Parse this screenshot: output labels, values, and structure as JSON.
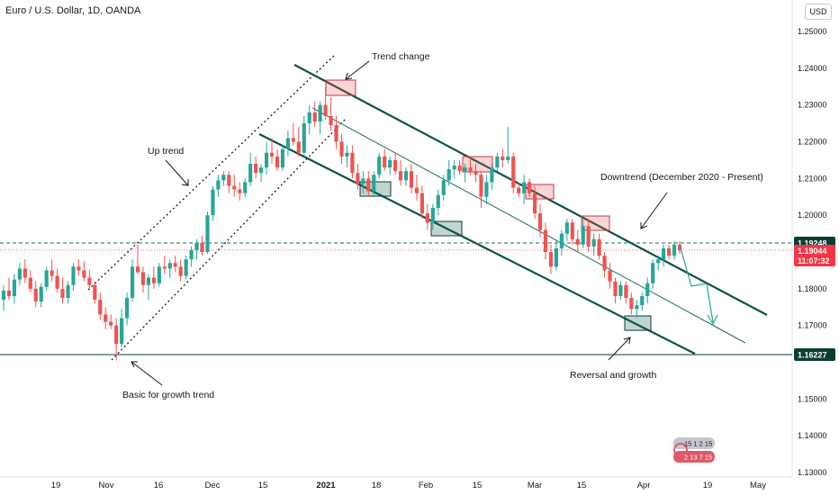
{
  "header": {
    "title": "Euro / U.S. Dollar, 1D, OANDA",
    "currency": "USD"
  },
  "price_tags": {
    "resistance": "1.19248",
    "current_price": "1.19044",
    "countdown": "11:07:32",
    "support": "1.16227"
  },
  "annotations": {
    "trend_change": "Trend change",
    "up_trend": "Up trend",
    "downtrend": "Downtrend (December 2020 - Present)",
    "basic_growth": "Basic for growth trend",
    "reversal": "Reversal and growth"
  },
  "colors": {
    "bullish": "#26a69a",
    "bearish": "#ef5350",
    "channel": "#0b5347",
    "resistance_line": "#1e6b5c",
    "current_price_tag": "#f23645",
    "support_tag": "#0b3d34"
  },
  "logo_text": {
    "line1": "15 1 2 15",
    "line2": "2 13 7 15"
  },
  "chart_data": {
    "type": "candlestick",
    "title": "Euro / U.S. Dollar, 1D, OANDA",
    "ylim": [
      1.1195,
      1.2618
    ],
    "y_ticks": [
      "1.25000",
      "1.24000",
      "1.23000",
      "1.22000",
      "1.21000",
      "1.20000",
      "1.18000",
      "1.17000",
      "1.15000",
      "1.14000",
      "1.13000"
    ],
    "x_ticks": [
      "19",
      "Nov",
      "16",
      "Dec",
      "15",
      "2021",
      "18",
      "Feb",
      "15",
      "Mar",
      "15",
      "Apr",
      "19",
      "May"
    ],
    "candles": [
      {
        "o": 1.177,
        "h": 1.181,
        "l": 1.174,
        "c": 1.1795
      },
      {
        "o": 1.1795,
        "h": 1.183,
        "l": 1.177,
        "c": 1.178
      },
      {
        "o": 1.178,
        "h": 1.184,
        "l": 1.176,
        "c": 1.1825
      },
      {
        "o": 1.1825,
        "h": 1.187,
        "l": 1.181,
        "c": 1.1855
      },
      {
        "o": 1.1855,
        "h": 1.188,
        "l": 1.1815,
        "c": 1.183
      },
      {
        "o": 1.183,
        "h": 1.185,
        "l": 1.179,
        "c": 1.18
      },
      {
        "o": 1.18,
        "h": 1.182,
        "l": 1.175,
        "c": 1.1765
      },
      {
        "o": 1.1765,
        "h": 1.1815,
        "l": 1.175,
        "c": 1.1805
      },
      {
        "o": 1.1805,
        "h": 1.186,
        "l": 1.1795,
        "c": 1.185
      },
      {
        "o": 1.185,
        "h": 1.188,
        "l": 1.182,
        "c": 1.1835
      },
      {
        "o": 1.1835,
        "h": 1.1855,
        "l": 1.179,
        "c": 1.18
      },
      {
        "o": 1.18,
        "h": 1.183,
        "l": 1.176,
        "c": 1.1775
      },
      {
        "o": 1.1775,
        "h": 1.182,
        "l": 1.176,
        "c": 1.181
      },
      {
        "o": 1.181,
        "h": 1.187,
        "l": 1.1795,
        "c": 1.186
      },
      {
        "o": 1.186,
        "h": 1.188,
        "l": 1.1835,
        "c": 1.185
      },
      {
        "o": 1.185,
        "h": 1.1875,
        "l": 1.182,
        "c": 1.183
      },
      {
        "o": 1.183,
        "h": 1.185,
        "l": 1.18,
        "c": 1.181
      },
      {
        "o": 1.181,
        "h": 1.182,
        "l": 1.176,
        "c": 1.177
      },
      {
        "o": 1.177,
        "h": 1.179,
        "l": 1.1715,
        "c": 1.173
      },
      {
        "o": 1.173,
        "h": 1.175,
        "l": 1.169,
        "c": 1.171
      },
      {
        "o": 1.171,
        "h": 1.173,
        "l": 1.169,
        "c": 1.17
      },
      {
        "o": 1.17,
        "h": 1.172,
        "l": 1.1605,
        "c": 1.165
      },
      {
        "o": 1.165,
        "h": 1.1745,
        "l": 1.164,
        "c": 1.172
      },
      {
        "o": 1.172,
        "h": 1.179,
        "l": 1.17,
        "c": 1.1775
      },
      {
        "o": 1.1775,
        "h": 1.188,
        "l": 1.1765,
        "c": 1.186
      },
      {
        "o": 1.186,
        "h": 1.192,
        "l": 1.184,
        "c": 1.1845
      },
      {
        "o": 1.1845,
        "h": 1.186,
        "l": 1.179,
        "c": 1.181
      },
      {
        "o": 1.181,
        "h": 1.184,
        "l": 1.177,
        "c": 1.183
      },
      {
        "o": 1.183,
        "h": 1.186,
        "l": 1.18,
        "c": 1.1815
      },
      {
        "o": 1.1815,
        "h": 1.187,
        "l": 1.1805,
        "c": 1.186
      },
      {
        "o": 1.186,
        "h": 1.189,
        "l": 1.184,
        "c": 1.1855
      },
      {
        "o": 1.1855,
        "h": 1.188,
        "l": 1.183,
        "c": 1.187
      },
      {
        "o": 1.187,
        "h": 1.189,
        "l": 1.1845,
        "c": 1.186
      },
      {
        "o": 1.186,
        "h": 1.188,
        "l": 1.182,
        "c": 1.1835
      },
      {
        "o": 1.1835,
        "h": 1.189,
        "l": 1.1825,
        "c": 1.188
      },
      {
        "o": 1.188,
        "h": 1.1915,
        "l": 1.186,
        "c": 1.1905
      },
      {
        "o": 1.1905,
        "h": 1.1935,
        "l": 1.188,
        "c": 1.1925
      },
      {
        "o": 1.1925,
        "h": 1.1945,
        "l": 1.189,
        "c": 1.19
      },
      {
        "o": 1.19,
        "h": 1.201,
        "l": 1.1895,
        "c": 1.2
      },
      {
        "o": 1.2,
        "h": 1.208,
        "l": 1.1985,
        "c": 1.207
      },
      {
        "o": 1.207,
        "h": 1.211,
        "l": 1.205,
        "c": 1.2095
      },
      {
        "o": 1.2095,
        "h": 1.212,
        "l": 1.208,
        "c": 1.211
      },
      {
        "o": 1.211,
        "h": 1.212,
        "l": 1.206,
        "c": 1.208
      },
      {
        "o": 1.208,
        "h": 1.211,
        "l": 1.205,
        "c": 1.207
      },
      {
        "o": 1.207,
        "h": 1.209,
        "l": 1.204,
        "c": 1.206
      },
      {
        "o": 1.206,
        "h": 1.21,
        "l": 1.205,
        "c": 1.209
      },
      {
        "o": 1.209,
        "h": 1.217,
        "l": 1.208,
        "c": 1.214
      },
      {
        "o": 1.214,
        "h": 1.216,
        "l": 1.21,
        "c": 1.2115
      },
      {
        "o": 1.2115,
        "h": 1.214,
        "l": 1.209,
        "c": 1.213
      },
      {
        "o": 1.213,
        "h": 1.22,
        "l": 1.211,
        "c": 1.217
      },
      {
        "o": 1.217,
        "h": 1.221,
        "l": 1.214,
        "c": 1.216
      },
      {
        "o": 1.216,
        "h": 1.218,
        "l": 1.212,
        "c": 1.213
      },
      {
        "o": 1.213,
        "h": 1.219,
        "l": 1.212,
        "c": 1.218
      },
      {
        "o": 1.218,
        "h": 1.223,
        "l": 1.216,
        "c": 1.221
      },
      {
        "o": 1.221,
        "h": 1.225,
        "l": 1.219,
        "c": 1.22
      },
      {
        "o": 1.22,
        "h": 1.224,
        "l": 1.216,
        "c": 1.217
      },
      {
        "o": 1.217,
        "h": 1.227,
        "l": 1.216,
        "c": 1.225
      },
      {
        "o": 1.225,
        "h": 1.23,
        "l": 1.222,
        "c": 1.228
      },
      {
        "o": 1.228,
        "h": 1.231,
        "l": 1.224,
        "c": 1.2255
      },
      {
        "o": 1.2255,
        "h": 1.231,
        "l": 1.222,
        "c": 1.23
      },
      {
        "o": 1.23,
        "h": 1.235,
        "l": 1.226,
        "c": 1.227
      },
      {
        "o": 1.227,
        "h": 1.232,
        "l": 1.223,
        "c": 1.2245
      },
      {
        "o": 1.2245,
        "h": 1.227,
        "l": 1.218,
        "c": 1.22
      },
      {
        "o": 1.22,
        "h": 1.222,
        "l": 1.214,
        "c": 1.216
      },
      {
        "o": 1.216,
        "h": 1.219,
        "l": 1.213,
        "c": 1.217
      },
      {
        "o": 1.217,
        "h": 1.219,
        "l": 1.21,
        "c": 1.2115
      },
      {
        "o": 1.2115,
        "h": 1.214,
        "l": 1.207,
        "c": 1.2085
      },
      {
        "o": 1.2085,
        "h": 1.212,
        "l": 1.206,
        "c": 1.21
      },
      {
        "o": 1.21,
        "h": 1.212,
        "l": 1.205,
        "c": 1.2065
      },
      {
        "o": 1.2065,
        "h": 1.212,
        "l": 1.2055,
        "c": 1.211
      },
      {
        "o": 1.211,
        "h": 1.217,
        "l": 1.21,
        "c": 1.216
      },
      {
        "o": 1.216,
        "h": 1.218,
        "l": 1.212,
        "c": 1.213
      },
      {
        "o": 1.213,
        "h": 1.216,
        "l": 1.211,
        "c": 1.215
      },
      {
        "o": 1.215,
        "h": 1.217,
        "l": 1.211,
        "c": 1.212
      },
      {
        "o": 1.212,
        "h": 1.215,
        "l": 1.208,
        "c": 1.2095
      },
      {
        "o": 1.2095,
        "h": 1.213,
        "l": 1.208,
        "c": 1.212
      },
      {
        "o": 1.212,
        "h": 1.214,
        "l": 1.206,
        "c": 1.2075
      },
      {
        "o": 1.2075,
        "h": 1.211,
        "l": 1.204,
        "c": 1.206
      },
      {
        "o": 1.206,
        "h": 1.208,
        "l": 1.199,
        "c": 1.2005
      },
      {
        "o": 1.2005,
        "h": 1.203,
        "l": 1.196,
        "c": 1.198
      },
      {
        "o": 1.198,
        "h": 1.203,
        "l": 1.196,
        "c": 1.202
      },
      {
        "o": 1.202,
        "h": 1.207,
        "l": 1.2,
        "c": 1.2055
      },
      {
        "o": 1.2055,
        "h": 1.211,
        "l": 1.204,
        "c": 1.2095
      },
      {
        "o": 1.2095,
        "h": 1.215,
        "l": 1.208,
        "c": 1.2125
      },
      {
        "o": 1.2125,
        "h": 1.215,
        "l": 1.21,
        "c": 1.2135
      },
      {
        "o": 1.2135,
        "h": 1.215,
        "l": 1.211,
        "c": 1.212
      },
      {
        "o": 1.212,
        "h": 1.214,
        "l": 1.209,
        "c": 1.213
      },
      {
        "o": 1.213,
        "h": 1.216,
        "l": 1.211,
        "c": 1.212
      },
      {
        "o": 1.212,
        "h": 1.214,
        "l": 1.209,
        "c": 1.211
      },
      {
        "o": 1.211,
        "h": 1.212,
        "l": 1.202,
        "c": 1.205
      },
      {
        "o": 1.205,
        "h": 1.211,
        "l": 1.203,
        "c": 1.209
      },
      {
        "o": 1.209,
        "h": 1.214,
        "l": 1.207,
        "c": 1.213
      },
      {
        "o": 1.213,
        "h": 1.217,
        "l": 1.212,
        "c": 1.216
      },
      {
        "o": 1.216,
        "h": 1.218,
        "l": 1.213,
        "c": 1.215
      },
      {
        "o": 1.215,
        "h": 1.224,
        "l": 1.214,
        "c": 1.216
      },
      {
        "o": 1.216,
        "h": 1.217,
        "l": 1.206,
        "c": 1.2075
      },
      {
        "o": 1.2075,
        "h": 1.209,
        "l": 1.205,
        "c": 1.206
      },
      {
        "o": 1.206,
        "h": 1.211,
        "l": 1.203,
        "c": 1.209
      },
      {
        "o": 1.209,
        "h": 1.21,
        "l": 1.205,
        "c": 1.206
      },
      {
        "o": 1.206,
        "h": 1.208,
        "l": 1.199,
        "c": 1.2005
      },
      {
        "o": 1.2005,
        "h": 1.203,
        "l": 1.194,
        "c": 1.196
      },
      {
        "o": 1.196,
        "h": 1.198,
        "l": 1.188,
        "c": 1.19
      },
      {
        "o": 1.19,
        "h": 1.192,
        "l": 1.184,
        "c": 1.186
      },
      {
        "o": 1.186,
        "h": 1.193,
        "l": 1.185,
        "c": 1.191
      },
      {
        "o": 1.191,
        "h": 1.196,
        "l": 1.189,
        "c": 1.195
      },
      {
        "o": 1.195,
        "h": 1.199,
        "l": 1.193,
        "c": 1.198
      },
      {
        "o": 1.198,
        "h": 1.199,
        "l": 1.192,
        "c": 1.1935
      },
      {
        "o": 1.1935,
        "h": 1.196,
        "l": 1.19,
        "c": 1.192
      },
      {
        "o": 1.192,
        "h": 1.199,
        "l": 1.191,
        "c": 1.197
      },
      {
        "o": 1.197,
        "h": 1.199,
        "l": 1.19,
        "c": 1.1915
      },
      {
        "o": 1.1915,
        "h": 1.195,
        "l": 1.189,
        "c": 1.1935
      },
      {
        "o": 1.1935,
        "h": 1.195,
        "l": 1.188,
        "c": 1.189
      },
      {
        "o": 1.189,
        "h": 1.19,
        "l": 1.183,
        "c": 1.185
      },
      {
        "o": 1.185,
        "h": 1.187,
        "l": 1.18,
        "c": 1.182
      },
      {
        "o": 1.182,
        "h": 1.183,
        "l": 1.176,
        "c": 1.178
      },
      {
        "o": 1.178,
        "h": 1.182,
        "l": 1.177,
        "c": 1.181
      },
      {
        "o": 1.181,
        "h": 1.182,
        "l": 1.176,
        "c": 1.1775
      },
      {
        "o": 1.1775,
        "h": 1.179,
        "l": 1.173,
        "c": 1.1745
      },
      {
        "o": 1.1745,
        "h": 1.177,
        "l": 1.172,
        "c": 1.1755
      },
      {
        "o": 1.1755,
        "h": 1.179,
        "l": 1.174,
        "c": 1.178
      },
      {
        "o": 1.178,
        "h": 1.183,
        "l": 1.176,
        "c": 1.1815
      },
      {
        "o": 1.1815,
        "h": 1.188,
        "l": 1.18,
        "c": 1.187
      },
      {
        "o": 1.187,
        "h": 1.189,
        "l": 1.185,
        "c": 1.188
      },
      {
        "o": 1.188,
        "h": 1.192,
        "l": 1.186,
        "c": 1.191
      },
      {
        "o": 1.191,
        "h": 1.192,
        "l": 1.188,
        "c": 1.189
      },
      {
        "o": 1.189,
        "h": 1.193,
        "l": 1.188,
        "c": 1.192
      },
      {
        "o": 1.192,
        "h": 1.193,
        "l": 1.1895,
        "c": 1.1904
      }
    ],
    "horizontal_levels": [
      1.19248,
      1.16227
    ],
    "current_price": 1.19044
  }
}
